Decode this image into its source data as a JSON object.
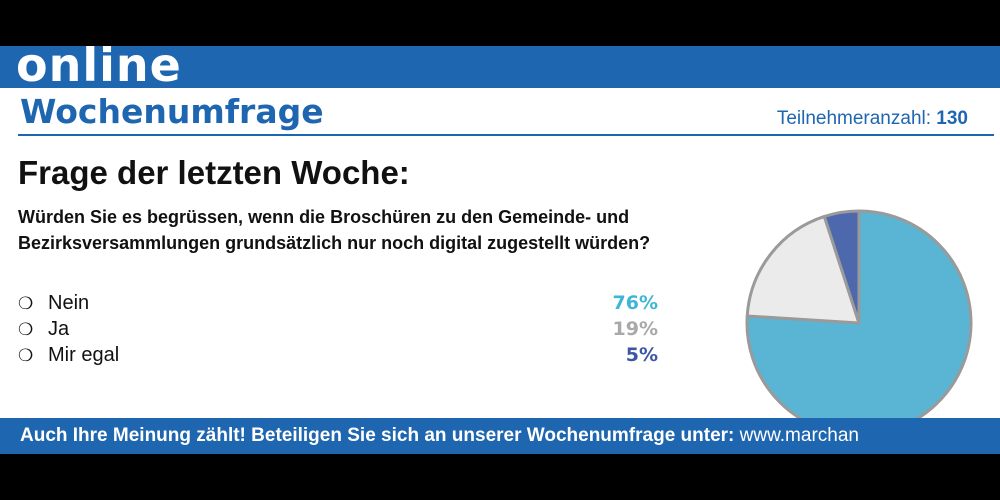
{
  "brand": {
    "online": "online",
    "title": "Wochenumfrage"
  },
  "participants": {
    "label": "Teilnehmeranzahl:",
    "count": "130"
  },
  "question": {
    "heading": "Frage der letzten Woche:",
    "line1": "Würden Sie es begrüssen, wenn die Broschüren zu den Gemeinde- und",
    "line2": "Bezirksversammlungen grundsätzlich nur noch digital zugestellt würden?"
  },
  "answers": [
    {
      "radio": "❍",
      "label": "Nein",
      "pct": "76%",
      "color": "#3fb6d8"
    },
    {
      "radio": "❍",
      "label": "Ja",
      "pct": "19%",
      "color": "#a9a9a9"
    },
    {
      "radio": "❍",
      "label": "Mir egal",
      "pct": "5%",
      "color": "#3a56a5"
    }
  ],
  "footer": {
    "text": "Auch Ihre Meinung zählt! Beteiligen Sie sich an unserer Wochenumfrage unter:",
    "url": "www.marchan"
  },
  "colors": {
    "brand_blue": "#1f66b0",
    "pie_nein": "#5ab4d4",
    "pie_ja": "#ebebeb",
    "pie_egal": "#4e68ad",
    "pie_stroke": "#9a9a9a"
  },
  "chart_data": {
    "type": "pie",
    "categories": [
      "Nein",
      "Ja",
      "Mir egal"
    ],
    "values": [
      76,
      19,
      5
    ],
    "colors": [
      "#5ab4d4",
      "#ebebeb",
      "#4e68ad"
    ],
    "start_angle_deg": 0,
    "direction": "clockwise"
  }
}
